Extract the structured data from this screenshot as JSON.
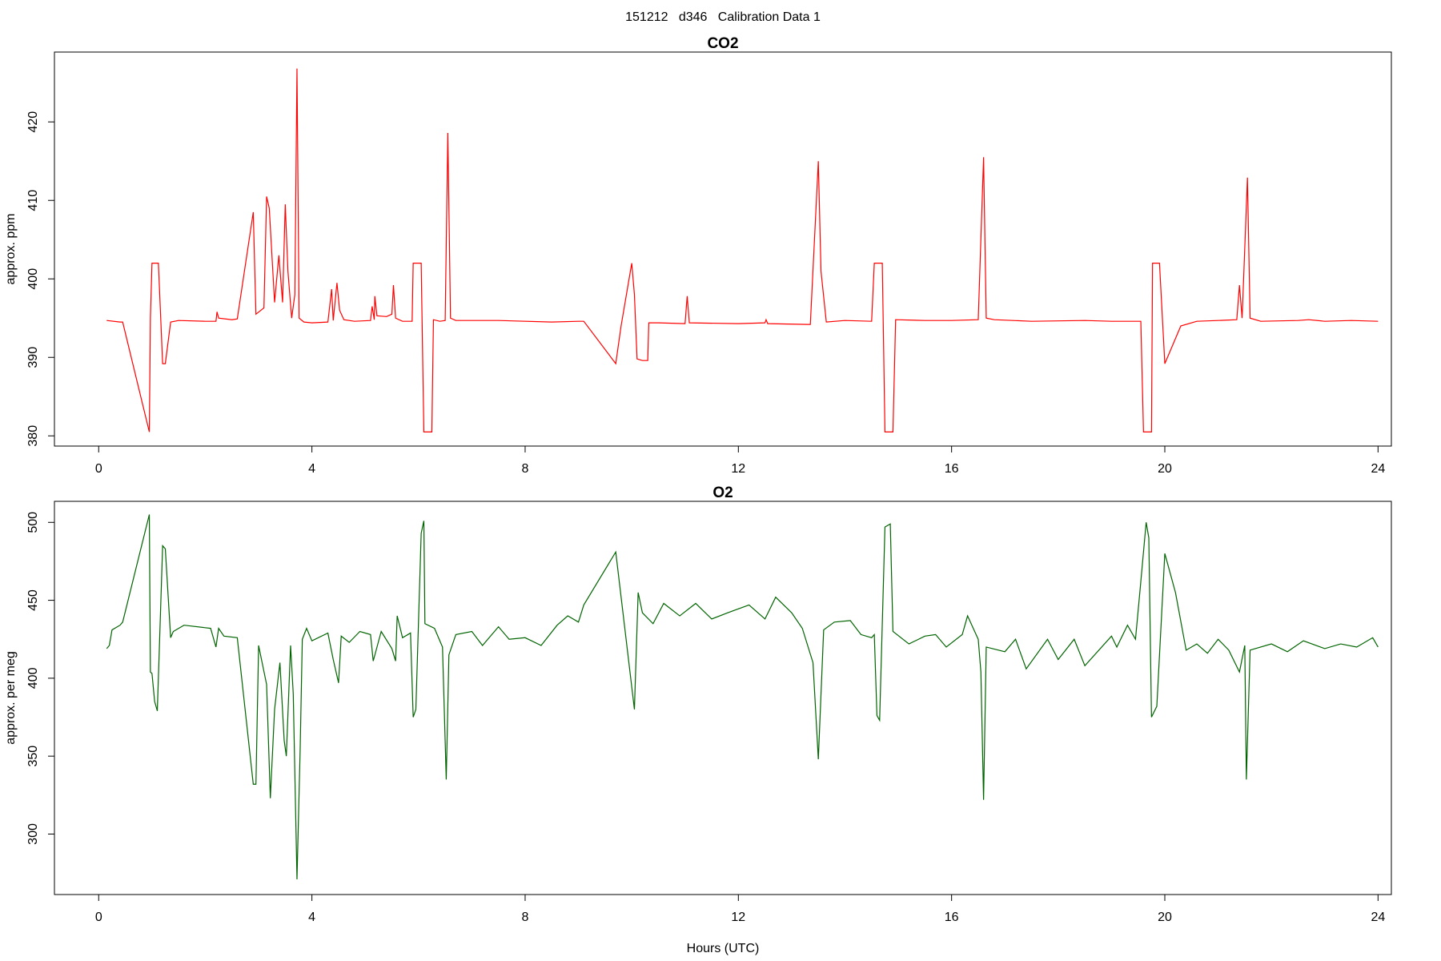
{
  "title": "151212   d346   Calibration Data 1",
  "chart_data": [
    {
      "type": "line",
      "title": "CO2",
      "ylabel": "approx. ppm",
      "color": "#ff0000",
      "xlim": [
        -0.83,
        24.25
      ],
      "xticks": [
        0,
        4,
        8,
        12,
        16,
        20,
        24
      ],
      "ylim": [
        378.7,
        428.9
      ],
      "yticks": [
        380,
        390,
        400,
        410,
        420
      ],
      "x": [
        0.15,
        0.4,
        0.45,
        0.95,
        0.97,
        1.0,
        1.12,
        1.2,
        1.25,
        1.35,
        1.5,
        2.0,
        2.2,
        2.22,
        2.25,
        2.5,
        2.6,
        2.9,
        2.95,
        3.1,
        3.15,
        3.2,
        3.3,
        3.38,
        3.45,
        3.5,
        3.55,
        3.62,
        3.68,
        3.72,
        3.76,
        3.85,
        4.0,
        4.3,
        4.37,
        4.4,
        4.47,
        4.52,
        4.6,
        4.8,
        5.1,
        5.13,
        5.17,
        5.18,
        5.22,
        5.4,
        5.5,
        5.53,
        5.57,
        5.7,
        5.88,
        5.9,
        6.05,
        6.1,
        6.25,
        6.28,
        6.4,
        6.5,
        6.55,
        6.6,
        6.7,
        7.5,
        8.5,
        9.0,
        9.1,
        9.7,
        9.8,
        10.0,
        10.05,
        10.1,
        10.2,
        10.3,
        10.32,
        10.5,
        11.0,
        11.04,
        11.08,
        12.0,
        12.5,
        12.52,
        12.55,
        13.3,
        13.35,
        13.5,
        13.55,
        13.65,
        14.0,
        14.5,
        14.55,
        14.7,
        14.75,
        14.9,
        14.95,
        15.5,
        16.0,
        16.5,
        16.6,
        16.65,
        16.8,
        17.5,
        18.5,
        19.0,
        19.55,
        19.6,
        19.75,
        19.77,
        19.9,
        20.0,
        20.3,
        20.6,
        21.0,
        21.35,
        21.4,
        21.45,
        21.55,
        21.6,
        21.8,
        22.5,
        22.7,
        23.0,
        23.5,
        24.0
      ],
      "values": [
        394.7,
        394.5,
        394.5,
        380.5,
        395,
        402,
        402,
        389.2,
        389.2,
        394.5,
        394.7,
        394.6,
        394.6,
        395.8,
        395.0,
        394.8,
        394.9,
        408.5,
        395.5,
        396.3,
        410.5,
        409,
        397,
        403,
        397,
        409.5,
        401,
        395,
        398,
        426.8,
        395,
        394.5,
        394.4,
        394.5,
        398.7,
        394.7,
        399.5,
        396,
        394.8,
        394.6,
        394.7,
        396.5,
        394.8,
        397.8,
        395.3,
        395.2,
        395.5,
        399.2,
        395,
        394.6,
        394.6,
        402,
        402,
        380.5,
        380.5,
        394.8,
        394.6,
        394.7,
        418.6,
        395,
        394.7,
        394.7,
        394.5,
        394.6,
        394.6,
        389.2,
        394,
        402,
        398,
        389.8,
        389.6,
        389.6,
        394.4,
        394.4,
        394.3,
        397.8,
        394.4,
        394.3,
        394.4,
        394.8,
        394.3,
        394.2,
        394.2,
        415.0,
        401,
        394.5,
        394.7,
        394.6,
        402,
        402,
        380.5,
        380.5,
        394.8,
        394.7,
        394.7,
        394.8,
        415.5,
        395,
        394.8,
        394.6,
        394.7,
        394.6,
        394.6,
        380.5,
        380.5,
        402,
        402,
        389.2,
        394,
        394.6,
        394.7,
        394.8,
        399.2,
        395,
        412.9,
        395,
        394.6,
        394.7,
        394.8,
        394.6,
        394.7,
        394.6
      ]
    },
    {
      "type": "line",
      "title": "O2",
      "ylabel": "approx. per meg",
      "xlabel": "Hours (UTC)",
      "color": "#006400",
      "xlim": [
        -0.83,
        24.25
      ],
      "xticks": [
        0,
        4,
        8,
        12,
        16,
        20,
        24
      ],
      "ylim": [
        261.2,
        513.5
      ],
      "yticks": [
        300,
        350,
        400,
        450,
        500
      ],
      "x": [
        0.15,
        0.2,
        0.25,
        0.4,
        0.45,
        0.95,
        0.97,
        1.0,
        1.05,
        1.1,
        1.2,
        1.25,
        1.35,
        1.4,
        1.6,
        2.1,
        2.2,
        2.25,
        2.35,
        2.6,
        2.9,
        2.95,
        3.0,
        3.15,
        3.22,
        3.3,
        3.4,
        3.48,
        3.52,
        3.6,
        3.65,
        3.72,
        3.78,
        3.82,
        3.9,
        4.0,
        4.3,
        4.4,
        4.5,
        4.55,
        4.7,
        4.9,
        5.1,
        5.15,
        5.3,
        5.5,
        5.57,
        5.6,
        5.7,
        5.85,
        5.9,
        5.95,
        6.05,
        6.1,
        6.12,
        6.3,
        6.45,
        6.52,
        6.57,
        6.7,
        7.0,
        7.2,
        7.5,
        7.7,
        8.0,
        8.3,
        8.6,
        8.8,
        9.0,
        9.1,
        9.7,
        10.05,
        10.12,
        10.2,
        10.4,
        10.6,
        10.9,
        11.2,
        11.5,
        11.8,
        12.2,
        12.5,
        12.7,
        13.0,
        13.2,
        13.4,
        13.5,
        13.6,
        13.8,
        14.1,
        14.3,
        14.5,
        14.55,
        14.6,
        14.65,
        14.75,
        14.85,
        14.9,
        15.2,
        15.5,
        15.7,
        15.9,
        16.2,
        16.3,
        16.5,
        16.55,
        16.6,
        16.65,
        17.0,
        17.2,
        17.4,
        17.8,
        18.0,
        18.3,
        18.5,
        19.0,
        19.1,
        19.3,
        19.45,
        19.55,
        19.65,
        19.7,
        19.75,
        19.85,
        20.0,
        20.2,
        20.4,
        20.6,
        20.8,
        21.0,
        21.2,
        21.4,
        21.5,
        21.53,
        21.6,
        22.0,
        22.3,
        22.6,
        23.0,
        23.3,
        23.6,
        23.9,
        24.0
      ],
      "values": [
        419,
        421,
        431,
        434,
        436,
        505,
        404,
        403,
        385,
        379,
        485,
        483,
        426,
        430,
        434,
        432,
        420,
        432,
        427,
        426,
        332,
        332,
        421,
        396,
        323,
        380,
        410,
        360,
        350,
        421,
        390,
        271,
        355,
        425,
        432,
        424,
        429,
        412,
        397,
        427,
        423,
        430,
        428,
        411,
        430,
        419,
        411,
        440,
        426,
        429,
        375,
        380,
        493,
        501,
        435,
        432,
        420,
        335,
        415,
        428,
        430,
        421,
        433,
        425,
        426,
        421,
        434,
        440,
        436,
        447,
        481,
        380,
        455,
        442,
        435,
        448,
        440,
        448,
        438,
        442,
        447,
        438,
        452,
        442,
        432,
        410,
        348,
        431,
        436,
        437,
        428,
        426,
        428,
        376,
        373,
        497,
        499,
        430,
        422,
        427,
        428,
        420,
        428,
        440,
        425,
        404,
        322,
        420,
        417,
        425,
        406,
        425,
        412,
        425,
        408,
        427,
        420,
        434,
        425,
        462,
        500,
        490,
        375,
        382,
        480,
        455,
        418,
        422,
        416,
        425,
        418,
        404,
        421,
        335,
        418,
        422,
        417,
        424,
        419,
        422,
        420,
        426,
        420
      ]
    }
  ]
}
